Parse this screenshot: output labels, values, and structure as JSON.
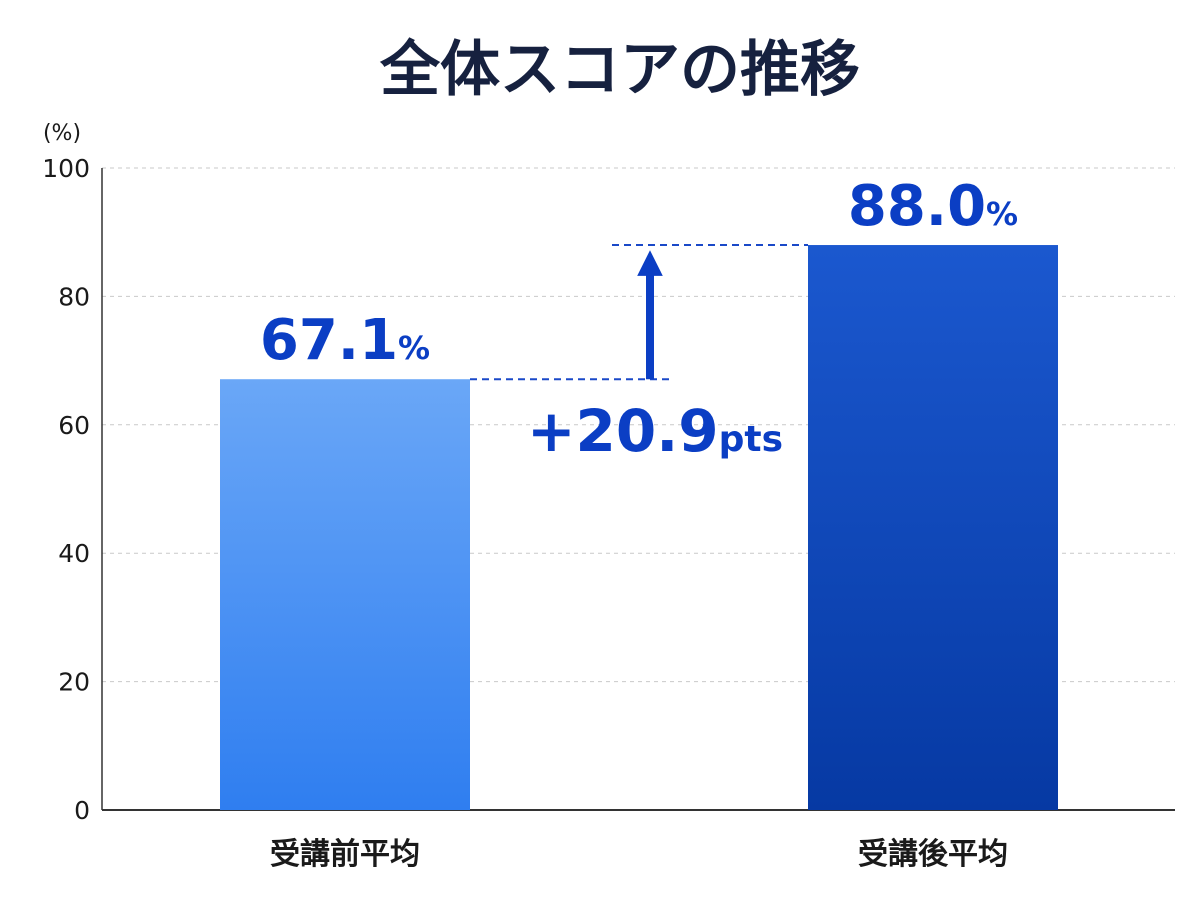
{
  "chart_data": {
    "type": "bar",
    "title": "全体スコアの推移",
    "y_unit": "(%)",
    "ylim": [
      0,
      100
    ],
    "yticks": [
      0,
      20,
      40,
      60,
      80,
      100
    ],
    "grid": true,
    "categories": [
      "受講前平均",
      "受講後平均"
    ],
    "values": [
      67.1,
      88.0
    ],
    "value_labels": [
      "67.1",
      "88.0"
    ],
    "value_suffix": "%",
    "colors": {
      "before_top": "#6aa7f7",
      "before_bottom": "#2f7ef0",
      "after_top": "#1b58cf",
      "after_bottom": "#0639a3",
      "accent": "#0b3ec4"
    },
    "annotation": {
      "value": "+20.9",
      "suffix": "pts"
    }
  }
}
